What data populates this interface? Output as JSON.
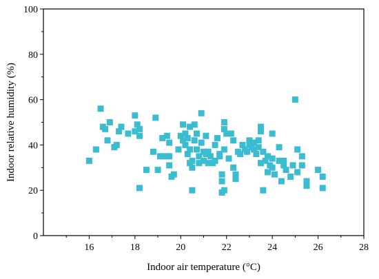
{
  "chart_data": {
    "type": "scatter",
    "xlabel": "Indoor air temperature (°C)",
    "ylabel": "Indoor relative humidity (%)",
    "xlim": [
      14,
      28
    ],
    "ylim": [
      0,
      100
    ],
    "x_ticks": [
      16,
      18,
      20,
      22,
      24,
      26,
      28
    ],
    "y_ticks": [
      0,
      20,
      40,
      60,
      80,
      100
    ],
    "x_tick_labels": [
      "16",
      "18",
      "20",
      "22",
      "24",
      "26",
      "28"
    ],
    "y_tick_labels": [
      "0",
      "20",
      "40",
      "60",
      "80",
      "100"
    ],
    "grid": false,
    "legend": "none",
    "marker": "square",
    "color": "#3BBCD0",
    "series": [
      {
        "points": [
          [
            16.0,
            33
          ],
          [
            16.3,
            38
          ],
          [
            16.5,
            56
          ],
          [
            16.6,
            48
          ],
          [
            16.7,
            47
          ],
          [
            16.8,
            42
          ],
          [
            16.9,
            50
          ],
          [
            17.1,
            39
          ],
          [
            17.2,
            40
          ],
          [
            17.3,
            46
          ],
          [
            17.4,
            48
          ],
          [
            17.7,
            45
          ],
          [
            18.0,
            53
          ],
          [
            18.0,
            46
          ],
          [
            18.1,
            49
          ],
          [
            18.2,
            47
          ],
          [
            18.2,
            44
          ],
          [
            18.2,
            21
          ],
          [
            18.5,
            29
          ],
          [
            18.8,
            37
          ],
          [
            18.9,
            52
          ],
          [
            19.0,
            29
          ],
          [
            19.1,
            35
          ],
          [
            19.2,
            43
          ],
          [
            19.3,
            35
          ],
          [
            19.4,
            44
          ],
          [
            19.5,
            41
          ],
          [
            19.5,
            35
          ],
          [
            19.5,
            31
          ],
          [
            19.6,
            26
          ],
          [
            19.7,
            27
          ],
          [
            19.9,
            38
          ],
          [
            20.0,
            44
          ],
          [
            20.1,
            42
          ],
          [
            20.1,
            49
          ],
          [
            20.2,
            45
          ],
          [
            20.2,
            40
          ],
          [
            20.3,
            43
          ],
          [
            20.3,
            36
          ],
          [
            20.4,
            48
          ],
          [
            20.4,
            38
          ],
          [
            20.4,
            32
          ],
          [
            20.5,
            33
          ],
          [
            20.5,
            30
          ],
          [
            20.5,
            20
          ],
          [
            20.6,
            49
          ],
          [
            20.6,
            42
          ],
          [
            20.7,
            45
          ],
          [
            20.7,
            38
          ],
          [
            20.8,
            35
          ],
          [
            20.8,
            32
          ],
          [
            20.9,
            54
          ],
          [
            20.9,
            41
          ],
          [
            21.0,
            37
          ],
          [
            21.0,
            33
          ],
          [
            21.1,
            44
          ],
          [
            21.1,
            36
          ],
          [
            21.2,
            37
          ],
          [
            21.2,
            32
          ],
          [
            21.3,
            35
          ],
          [
            21.4,
            32
          ],
          [
            21.5,
            40
          ],
          [
            21.5,
            33
          ],
          [
            21.6,
            43
          ],
          [
            21.7,
            36
          ],
          [
            21.7,
            35
          ],
          [
            21.8,
            27
          ],
          [
            21.8,
            24
          ],
          [
            21.8,
            19
          ],
          [
            21.9,
            50
          ],
          [
            21.9,
            47
          ],
          [
            21.9,
            38
          ],
          [
            21.9,
            20
          ],
          [
            22.0,
            45
          ],
          [
            22.1,
            34
          ],
          [
            22.2,
            45
          ],
          [
            22.3,
            30
          ],
          [
            22.3,
            42
          ],
          [
            22.4,
            27
          ],
          [
            22.4,
            25
          ],
          [
            22.5,
            37
          ],
          [
            22.6,
            36
          ],
          [
            22.7,
            40
          ],
          [
            22.8,
            38
          ],
          [
            22.9,
            37
          ],
          [
            23.0,
            40
          ],
          [
            23.0,
            42
          ],
          [
            23.1,
            39
          ],
          [
            23.2,
            38
          ],
          [
            23.2,
            41
          ],
          [
            23.3,
            36
          ],
          [
            23.4,
            42
          ],
          [
            23.4,
            39
          ],
          [
            23.5,
            46
          ],
          [
            23.5,
            48
          ],
          [
            23.5,
            32
          ],
          [
            23.6,
            37
          ],
          [
            23.6,
            20
          ],
          [
            23.7,
            33
          ],
          [
            23.8,
            35
          ],
          [
            23.8,
            28
          ],
          [
            23.9,
            31
          ],
          [
            24.0,
            34
          ],
          [
            24.0,
            45
          ],
          [
            24.0,
            30
          ],
          [
            24.1,
            27
          ],
          [
            24.3,
            33
          ],
          [
            24.3,
            39
          ],
          [
            24.4,
            24
          ],
          [
            24.5,
            31
          ],
          [
            24.5,
            33
          ],
          [
            24.6,
            29
          ],
          [
            24.8,
            26
          ],
          [
            24.9,
            31
          ],
          [
            25.0,
            60
          ],
          [
            25.1,
            38
          ],
          [
            25.1,
            28
          ],
          [
            25.3,
            35
          ],
          [
            25.3,
            31
          ],
          [
            25.5,
            24
          ],
          [
            25.5,
            22
          ],
          [
            26.0,
            29
          ],
          [
            26.2,
            26
          ],
          [
            26.2,
            21
          ]
        ]
      }
    ]
  }
}
